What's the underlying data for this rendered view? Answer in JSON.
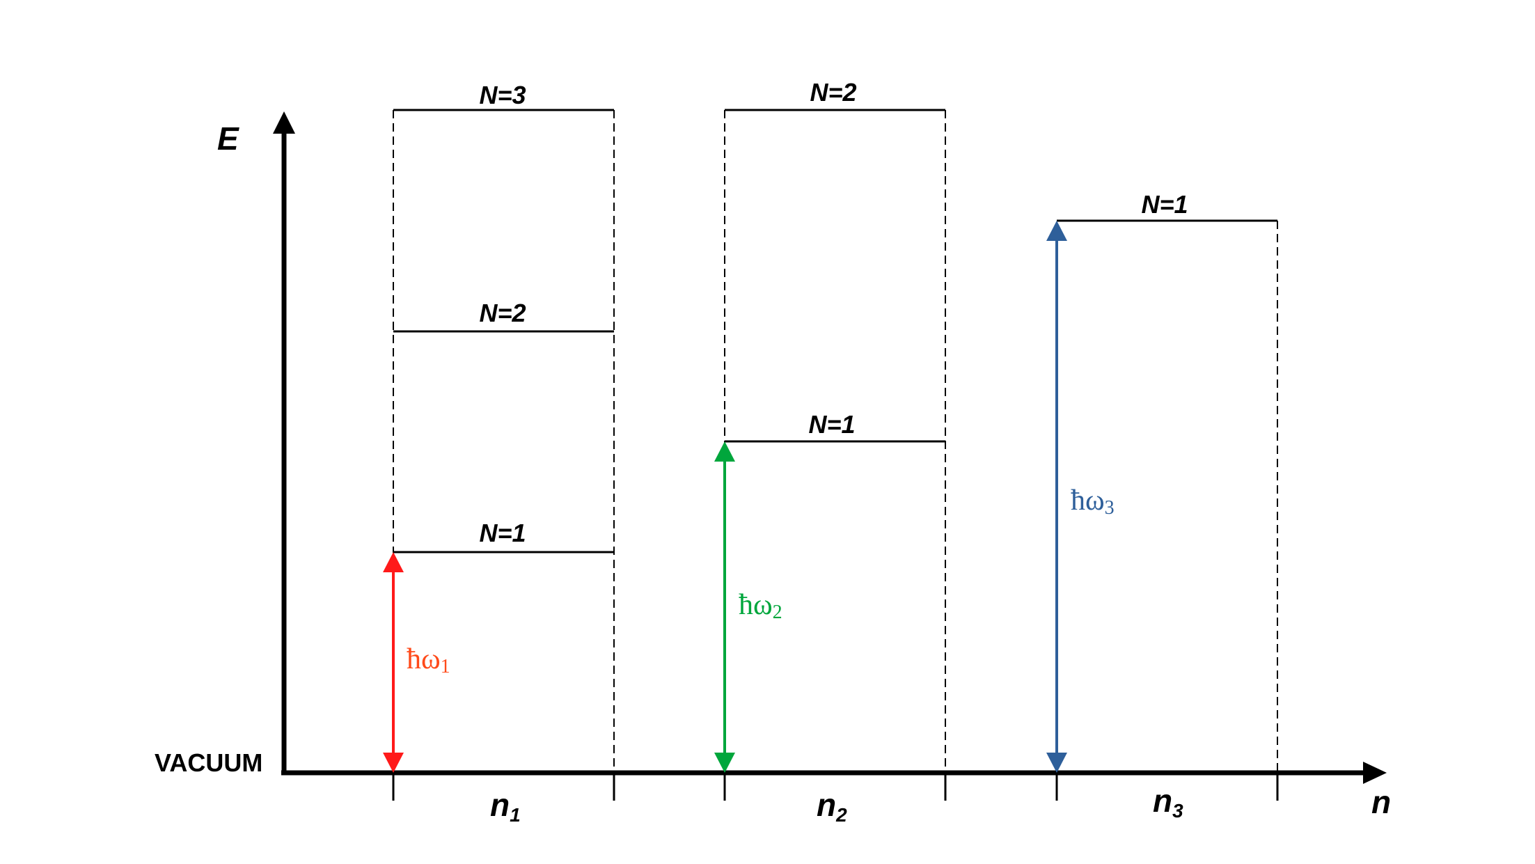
{
  "axes": {
    "y_label": "E",
    "x_label": "n",
    "baseline_label": "VACUUM"
  },
  "colors": {
    "axis": "#000000",
    "mode1": "#ff1a1a",
    "mode1_label": "#ff4a1a",
    "mode2": "#00a63c",
    "mode3": "#2e5f9a"
  },
  "modes": [
    {
      "name_base": "n",
      "name_sub": "1",
      "levels": [
        "N=1",
        "N=2",
        "N=3"
      ],
      "photon_base": "ħω",
      "photon_sub": "1"
    },
    {
      "name_base": "n",
      "name_sub": "2",
      "levels": [
        "N=1",
        "N=2"
      ],
      "photon_base": "ħω",
      "photon_sub": "2"
    },
    {
      "name_base": "n",
      "name_sub": "3",
      "levels": [
        "N=1"
      ],
      "photon_base": "ħω",
      "photon_sub": "3"
    }
  ]
}
